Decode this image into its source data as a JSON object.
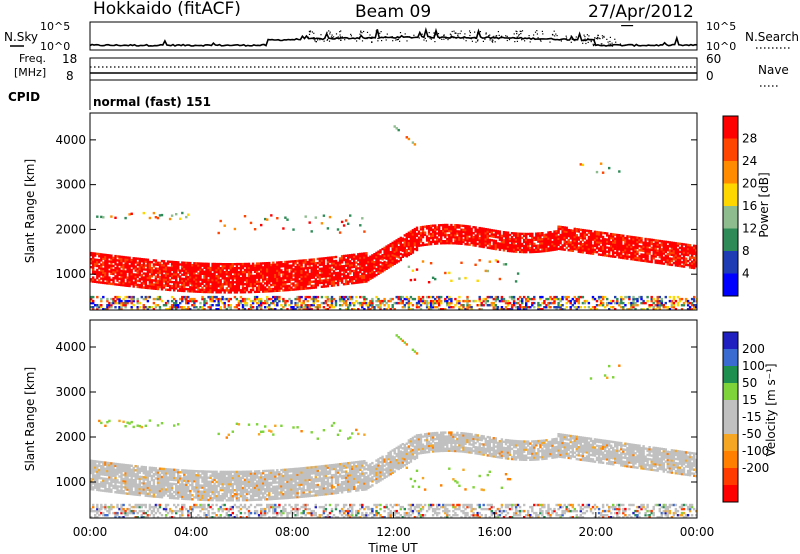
{
  "header": {
    "radar": "Hokkaido (fitACF)",
    "beam": "Beam 09",
    "date": "27/Apr/2012"
  },
  "panels": {
    "nsky_label": "N.Sky",
    "nsearch_label": "N.Search",
    "nsky_ticks": [
      "10^5",
      "10^0"
    ],
    "nsearch_ticks": [
      "10^5",
      "10^0"
    ],
    "freq_label": "Freq.",
    "freq_unit": "[MHz]",
    "freq_ticks": [
      "18",
      "8"
    ],
    "nave_label": "Nave",
    "nave_ticks": [
      "60",
      "0"
    ],
    "cpid_label": "CPID",
    "cpid_text": "normal (fast) 151"
  },
  "colors": {
    "power": [
      "#0000ff",
      "#1e3cb4",
      "#2e8b57",
      "#8fbc8f",
      "#ffd700",
      "#ff8c00",
      "#ff4500",
      "#ff0000"
    ],
    "velocity": [
      "#2020c0",
      "#3a6bd0",
      "#1e8f4f",
      "#7fd33a",
      "#c0c0c0",
      "#c0c0c0",
      "#f5a623",
      "#ff7f00",
      "#ff3b00",
      "#ff0000"
    ],
    "ground_scatter": "#c0c0c0"
  },
  "chart_data": [
    {
      "type": "heatmap",
      "name": "power",
      "ylabel": "Slant Range [km]",
      "xlabel": "",
      "ylim": [
        200,
        4600
      ],
      "yticks": [
        "1000",
        "2000",
        "3000",
        "4000"
      ],
      "colorbar_label": "Power [dB]",
      "colorbar_ticks": [
        "4",
        "8",
        "12",
        "16",
        "20",
        "24",
        "28"
      ]
    },
    {
      "type": "heatmap",
      "name": "velocity",
      "ylabel": "Slant Range [km]",
      "xlabel": "Time UT",
      "ylim": [
        200,
        4600
      ],
      "yticks": [
        "1000",
        "2000",
        "3000",
        "4000"
      ],
      "xticks": [
        "00:00",
        "04:00",
        "08:00",
        "12:00",
        "16:00",
        "20:00",
        "00:00"
      ],
      "colorbar_label": "Velocity [m s⁻¹]",
      "colorbar_ticks": [
        "200",
        "100",
        "50",
        "15",
        "-15",
        "-50",
        "-100",
        "-200"
      ]
    }
  ]
}
